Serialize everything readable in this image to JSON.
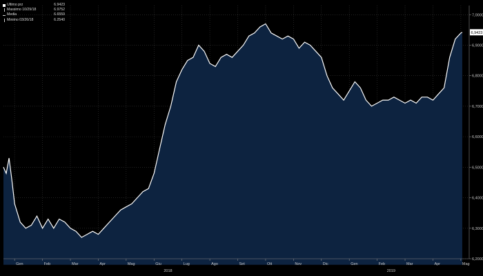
{
  "chart_data": {
    "type": "area",
    "title": "",
    "xlabel": "",
    "ylabel": "",
    "ylim": [
      6.2,
      7.03
    ],
    "y_ticks": [
      "6,2000",
      "6,3000",
      "6,4000",
      "6,5000",
      "6,6000",
      "6,7000",
      "6,8000",
      "6,9000",
      "7,0000"
    ],
    "y_tick_values": [
      6.2,
      6.3,
      6.4,
      6.5,
      6.6,
      6.7,
      6.8,
      6.9,
      7.0
    ],
    "x_month_labels": [
      "Gen",
      "Feb",
      "Mar",
      "Apr",
      "Mag",
      "Giu",
      "Lug",
      "Ago",
      "Set",
      "Ott",
      "Nov",
      "Dic",
      "Gen",
      "Feb",
      "Mar",
      "Apr",
      "Mag"
    ],
    "x_month_index": [
      0,
      1,
      2,
      3,
      4,
      5,
      6,
      7,
      8,
      9,
      10,
      11,
      12,
      13,
      14,
      15,
      16
    ],
    "x_year_labels": [
      {
        "label": "2018",
        "month_index": 5.5
      },
      {
        "label": "2019",
        "month_index": 13.5
      }
    ],
    "series": [
      {
        "x": [
          -0.4,
          -0.3,
          -0.2,
          -0.1,
          0,
          0.2,
          0.4,
          0.6,
          0.8,
          1,
          1.2,
          1.4,
          1.6,
          1.8,
          2,
          2.2,
          2.4,
          2.6,
          2.8,
          3,
          3.2,
          3.4,
          3.6,
          3.8,
          4,
          4.2,
          4.4,
          4.6,
          4.8,
          5,
          5.2,
          5.4,
          5.6,
          5.8,
          6,
          6.2,
          6.4,
          6.6,
          6.8,
          7,
          7.2,
          7.4,
          7.6,
          7.8,
          8,
          8.2,
          8.4,
          8.6,
          8.8,
          9,
          9.2,
          9.4,
          9.6,
          9.8,
          10,
          10.2,
          10.4,
          10.6,
          10.8,
          11,
          11.2,
          11.4,
          11.6,
          11.8,
          12,
          12.2,
          12.4,
          12.6,
          12.8,
          13,
          13.2,
          13.4,
          13.6,
          13.8,
          14,
          14.2,
          14.4,
          14.6,
          14.8,
          15,
          15.2,
          15.4,
          15.6,
          15.8,
          16,
          16.05
        ],
        "y": [
          6.5,
          6.48,
          6.53,
          6.46,
          6.38,
          6.32,
          6.3,
          6.31,
          6.34,
          6.3,
          6.33,
          6.3,
          6.33,
          6.32,
          6.3,
          6.29,
          6.27,
          6.28,
          6.29,
          6.28,
          6.3,
          6.32,
          6.34,
          6.36,
          6.37,
          6.38,
          6.4,
          6.42,
          6.43,
          6.48,
          6.56,
          6.64,
          6.7,
          6.78,
          6.82,
          6.85,
          6.86,
          6.9,
          6.88,
          6.84,
          6.83,
          6.86,
          6.87,
          6.86,
          6.88,
          6.9,
          6.93,
          6.94,
          6.96,
          6.97,
          6.94,
          6.93,
          6.92,
          6.93,
          6.92,
          6.89,
          6.91,
          6.9,
          6.88,
          6.86,
          6.8,
          6.76,
          6.74,
          6.72,
          6.75,
          6.78,
          6.76,
          6.72,
          6.7,
          6.71,
          6.72,
          6.72,
          6.73,
          6.72,
          6.71,
          6.72,
          6.71,
          6.73,
          6.73,
          6.72,
          6.74,
          6.76,
          6.86,
          6.92,
          6.94,
          6.9423
        ]
      }
    ],
    "legend": [
      {
        "label": "Ultimo prz",
        "value": "6.9423"
      },
      {
        "label": "Massimo 10/29/18",
        "value": "6.9752"
      },
      {
        "label": "Media",
        "value": "6.6559"
      },
      {
        "label": "Minimo 03/26/18",
        "value": "6.2540"
      }
    ],
    "last_value_label": "6,9423",
    "colors": {
      "background": "#000000",
      "fill": "#0d2340",
      "line": "#ffffff",
      "grid": "#3a3a3a",
      "label_box": "#ffffff"
    }
  }
}
